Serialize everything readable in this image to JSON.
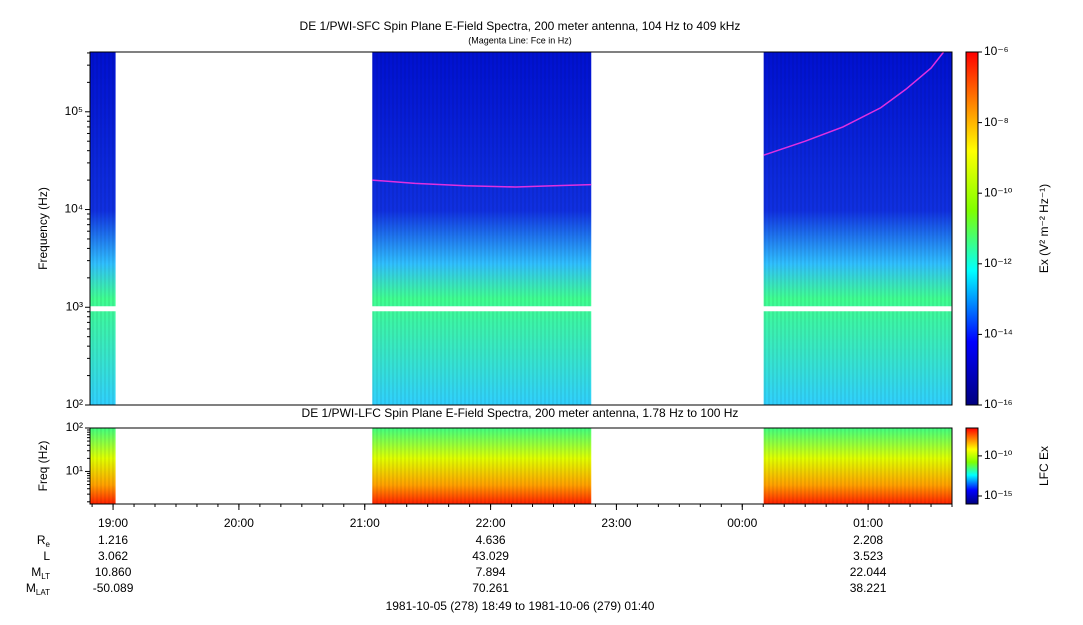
{
  "chart_data": [
    {
      "type": "spectrogram",
      "title": "DE 1/PWI-SFC  Spin Plane E-Field Spectra, 200 meter antenna, 104 Hz to 409 kHz",
      "subtitle": "(Magenta Line: Fce in Hz)",
      "y_label": "Frequency (Hz)",
      "colorbar_label": "Ex (V² m⁻² Hz⁻¹)",
      "log_y": true,
      "xlim": [
        18.8167,
        25.6667
      ],
      "ylim": [
        100,
        409000
      ],
      "yticks": [
        {
          "value": 100,
          "label": "10²"
        },
        {
          "value": 1000,
          "label": "10³"
        },
        {
          "value": 10000,
          "label": "10⁴"
        },
        {
          "value": 100000,
          "label": "10⁵"
        }
      ],
      "zlim": [
        1e-16,
        1e-06
      ],
      "zticks": [
        {
          "value": 1e-06,
          "label": "10⁻⁶"
        },
        {
          "value": 1e-08,
          "label": "10⁻⁸"
        },
        {
          "value": 1e-10,
          "label": "10⁻¹⁰"
        },
        {
          "value": 1e-12,
          "label": "10⁻¹²"
        },
        {
          "value": 1e-14,
          "label": "10⁻¹⁴"
        },
        {
          "value": 1e-16,
          "label": "10⁻¹⁶"
        }
      ],
      "segments": [
        [
          18.8167,
          19.02
        ],
        [
          21.06,
          22.8
        ],
        [
          24.17,
          25.6667
        ]
      ],
      "series": [
        {
          "name": "Fce",
          "color": "#e030e0",
          "x": [
            21.06,
            21.4,
            21.8,
            22.2,
            22.5,
            22.8,
            null,
            24.17,
            24.5,
            24.8,
            25.1,
            25.3,
            25.5,
            25.6
          ],
          "values": [
            20000,
            18500,
            17500,
            17000,
            17500,
            18000,
            null,
            36000,
            50000,
            70000,
            110000,
            170000,
            280000,
            409000
          ]
        }
      ]
    },
    {
      "type": "spectrogram",
      "title": "DE 1/PWI-LFC  Spin Plane E-Field Spectra, 200 meter antenna, 1.78 Hz to 100 Hz",
      "y_label": "Freq (Hz)",
      "colorbar_label": "LFC Ex",
      "log_y": true,
      "xlim": [
        18.8167,
        25.6667
      ],
      "ylim": [
        1.78,
        100
      ],
      "yticks": [
        {
          "value": 10,
          "label": "10¹"
        },
        {
          "value": 100,
          "label": "10²"
        }
      ],
      "xticks": [
        {
          "value": 19,
          "label": "19:00"
        },
        {
          "value": 20,
          "label": "20:00"
        },
        {
          "value": 21,
          "label": "21:00"
        },
        {
          "value": 22,
          "label": "22:00"
        },
        {
          "value": 23,
          "label": "23:00"
        },
        {
          "value": 24,
          "label": "00:00"
        },
        {
          "value": 25,
          "label": "01:00"
        }
      ],
      "zlim": [
        1e-16,
        3e-07
      ],
      "zticks": [
        {
          "value": 1e-10,
          "label": "10⁻¹⁰"
        },
        {
          "value": 1e-15,
          "label": "10⁻¹⁵"
        }
      ],
      "segments": [
        [
          18.8167,
          19.02
        ],
        [
          21.06,
          22.8
        ],
        [
          24.17,
          25.6667
        ]
      ]
    }
  ],
  "ephemeris": {
    "rows": [
      {
        "label": "R",
        "sub": "e",
        "values": [
          "1.216",
          "4.636",
          "2.208"
        ]
      },
      {
        "label": "L",
        "values": [
          "3.062",
          "43.029",
          "3.523"
        ]
      },
      {
        "label": "M",
        "sub": "LT",
        "values": [
          "10.860",
          "7.894",
          "22.044"
        ]
      },
      {
        "label": "M",
        "sub": "LAT",
        "values": [
          "-50.089",
          "70.261",
          "38.221"
        ]
      }
    ]
  },
  "footer": "1981-10-05 (278) 18:49 to 1981-10-06 (279) 01:40"
}
